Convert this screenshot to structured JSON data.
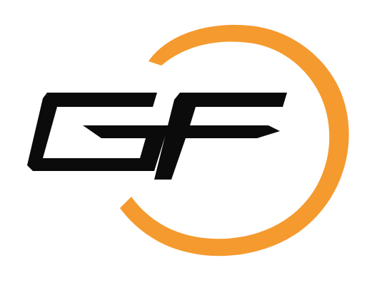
{
  "logo": {
    "text": "GF",
    "colors": {
      "background": "#ffffff",
      "letters": "#0b0b0b",
      "ring": "#f59a2f"
    },
    "icon": "gf-ring-logo"
  }
}
